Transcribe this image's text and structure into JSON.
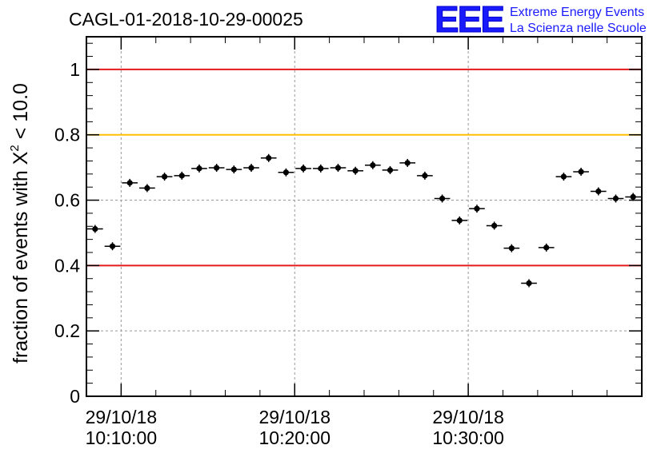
{
  "chart_data": {
    "type": "scatter",
    "title": "CAGL-01-2018-10-29-00025",
    "ylabel": "fraction of events with",
    "ylabel_symbol": "X",
    "ylabel_exponent": "2",
    "ylabel_suffix": " < 10.0",
    "xlabel": "",
    "x_unit": "minutes after 29/10/18 10:08:05",
    "xlim": [
      0,
      32
    ],
    "ylim": [
      0,
      1.1
    ],
    "y_ticks": [
      0,
      0.2,
      0.4,
      0.6,
      0.8,
      1
    ],
    "y_tick_labels": [
      "0",
      "0.2",
      "0.4",
      "0.6",
      "0.8",
      "1"
    ],
    "x_ticks": [
      {
        "value": 2,
        "date": "29/10/18",
        "time": "10:10:00"
      },
      {
        "value": 12,
        "date": "29/10/18",
        "time": "10:20:00"
      },
      {
        "value": 22,
        "date": "29/10/18",
        "time": "10:30:00"
      }
    ],
    "grid": true,
    "reference_lines": [
      {
        "y": 1.0,
        "color": "#e41a1c"
      },
      {
        "y": 0.8,
        "color": "#ffc000"
      },
      {
        "y": 0.4,
        "color": "#e41a1c"
      }
    ],
    "bin_width": 1,
    "series": [
      {
        "color": "#000000",
        "x": [
          0.5,
          1.5,
          2.5,
          3.5,
          4.5,
          5.5,
          6.5,
          7.5,
          8.5,
          9.5,
          10.5,
          11.5,
          12.5,
          13.5,
          14.5,
          15.5,
          16.5,
          17.5,
          18.5,
          19.5,
          20.5,
          21.5,
          22.5,
          23.5,
          24.5,
          25.5,
          26.5,
          27.5,
          28.5,
          29.5,
          30.5,
          31.5
        ],
        "y": [
          0.512,
          0.459,
          0.653,
          0.637,
          0.672,
          0.675,
          0.697,
          0.699,
          0.694,
          0.699,
          0.729,
          0.685,
          0.697,
          0.697,
          0.699,
          0.69,
          0.707,
          0.692,
          0.714,
          0.675,
          0.605,
          0.538,
          0.574,
          0.522,
          0.453,
          0.346,
          0.455,
          0.672,
          0.687,
          0.627,
          0.605,
          0.61
        ]
      }
    ]
  },
  "logo": {
    "mark": "EEE",
    "line1": "Extreme Energy Events",
    "line2": "La Scienza nelle Scuole"
  }
}
